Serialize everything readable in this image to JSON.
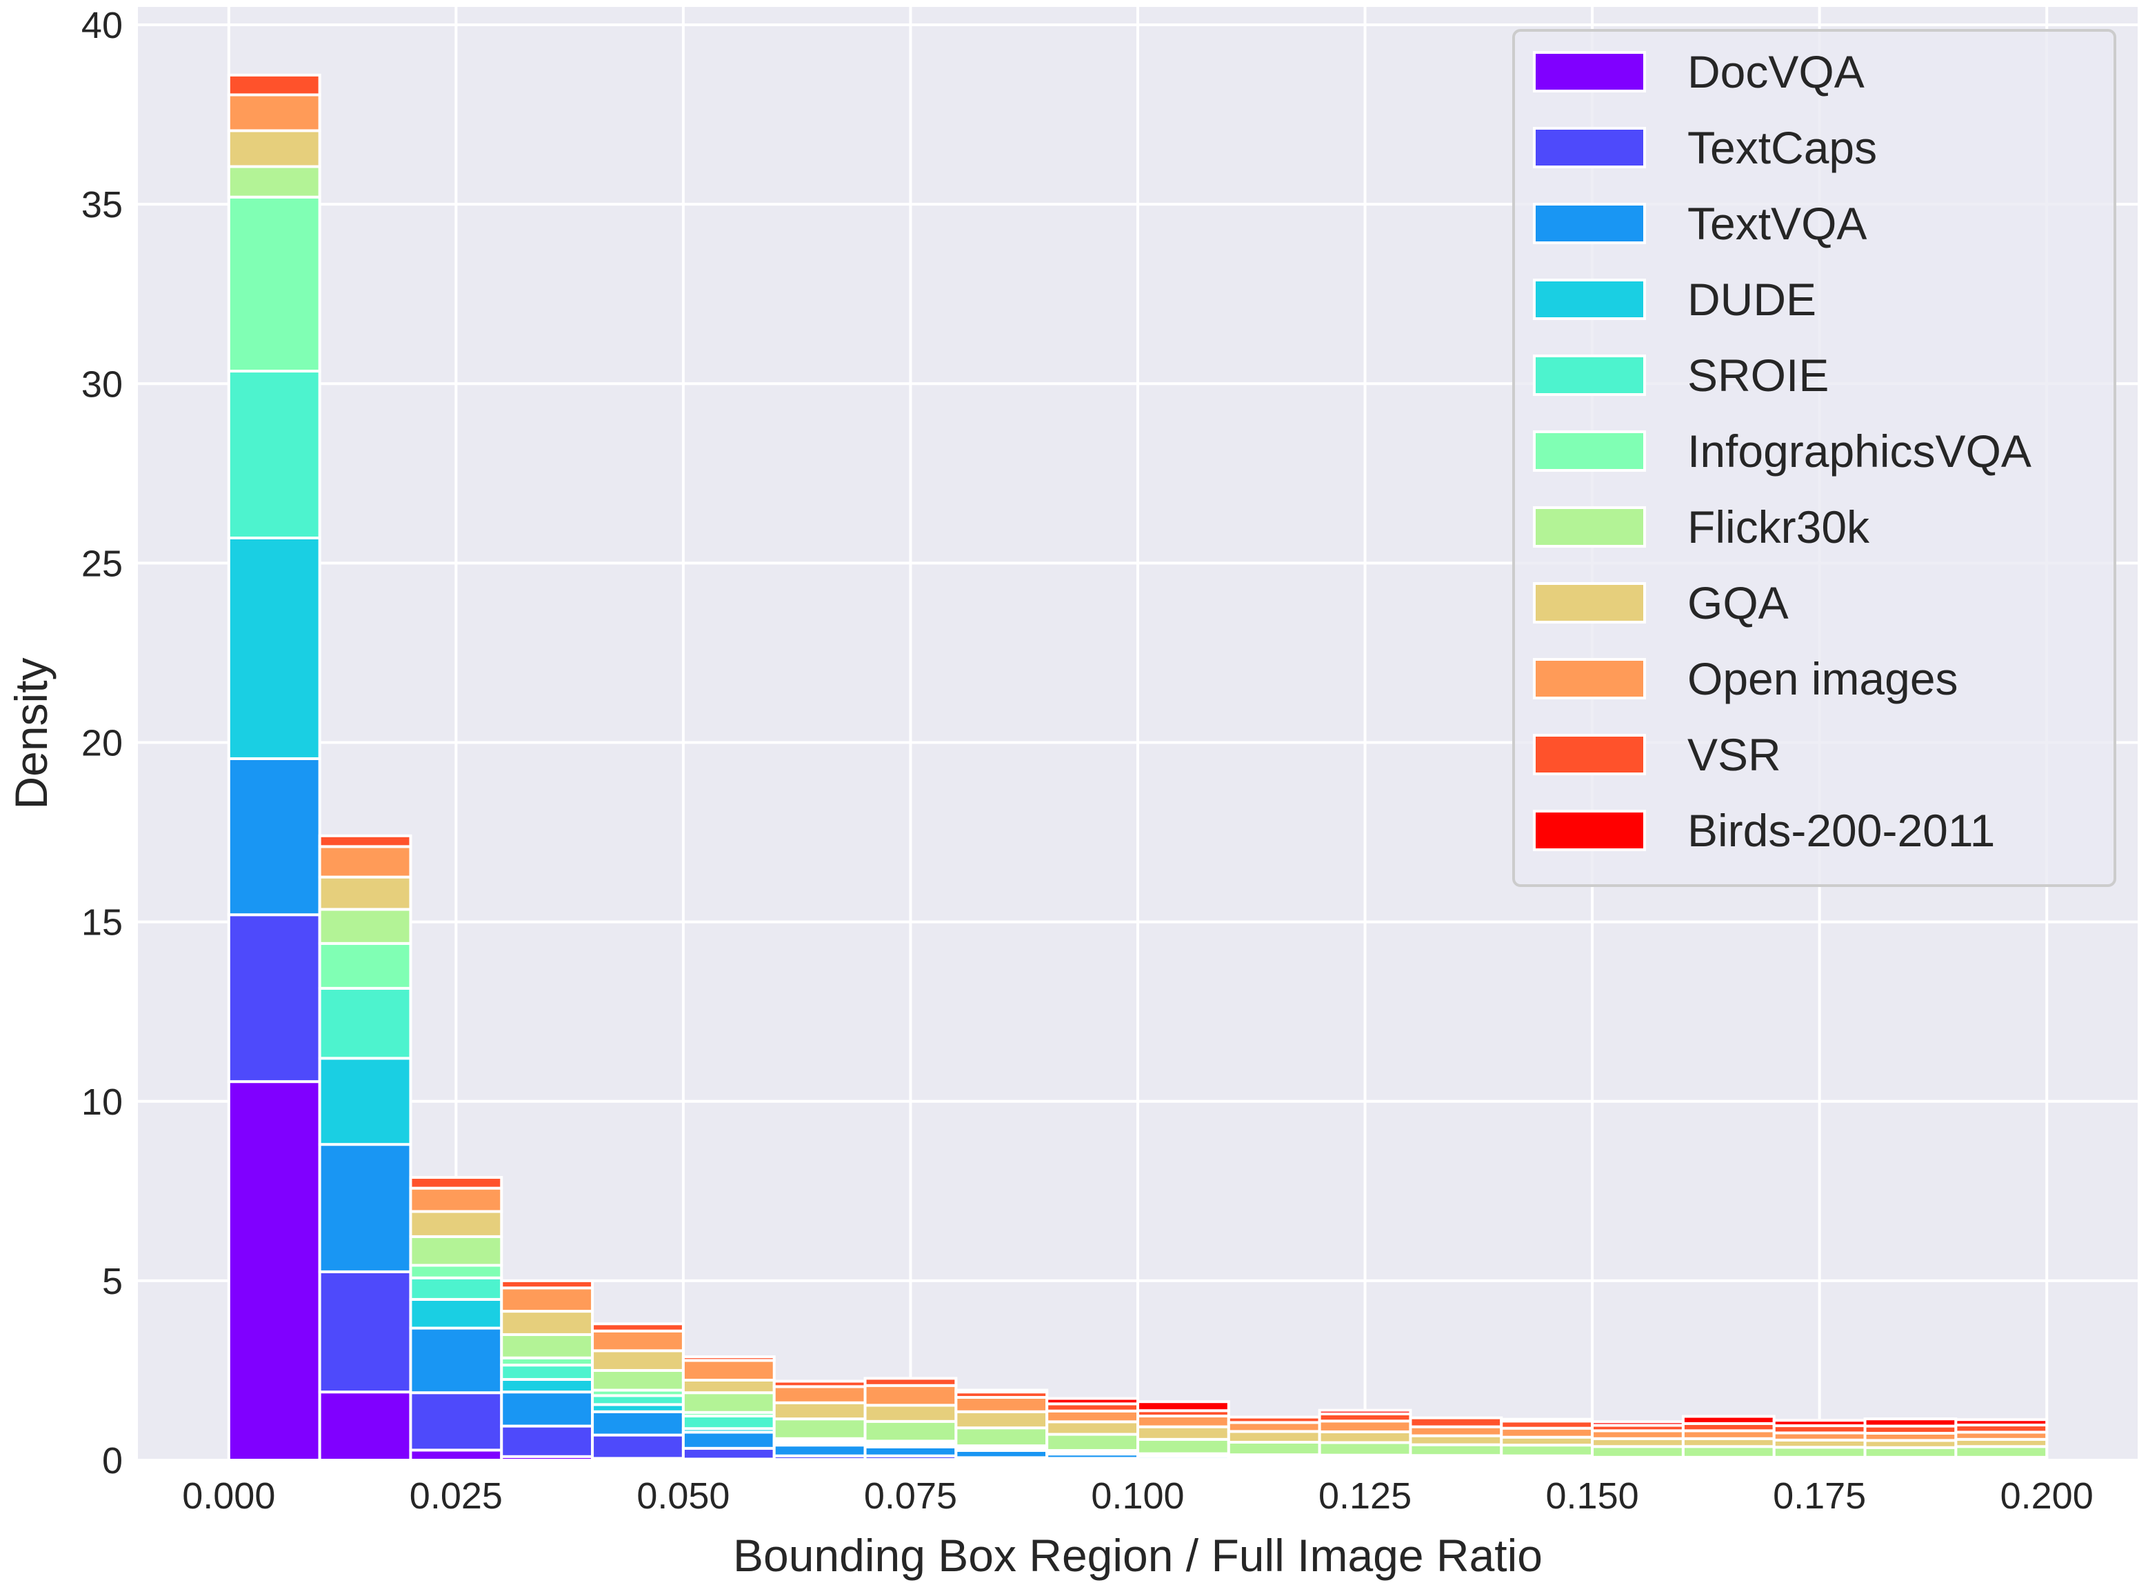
{
  "chart_data": {
    "type": "bar",
    "stacked": true,
    "histogram": true,
    "title": "",
    "xlabel": "Bounding Box Region / Full Image Ratio",
    "ylabel": "Density",
    "xlim": [
      -0.01,
      0.21
    ],
    "ylim": [
      0,
      40.5
    ],
    "x_ticks": [
      0.0,
      0.025,
      0.05,
      0.075,
      0.1,
      0.125,
      0.15,
      0.175,
      0.2
    ],
    "x_tick_labels": [
      "0.000",
      "0.025",
      "0.050",
      "0.075",
      "0.100",
      "0.125",
      "0.150",
      "0.175",
      "0.200"
    ],
    "y_ticks": [
      0,
      5,
      10,
      15,
      20,
      25,
      30,
      35,
      40
    ],
    "y_tick_labels": [
      "0",
      "5",
      "10",
      "15",
      "20",
      "25",
      "30",
      "35",
      "40"
    ],
    "grid": true,
    "legend_position": "top-right",
    "bin_edges": [
      0.0,
      0.01,
      0.02,
      0.03,
      0.04,
      0.05,
      0.06,
      0.07,
      0.08,
      0.09,
      0.1,
      0.11,
      0.12,
      0.13,
      0.14,
      0.15,
      0.16,
      0.17,
      0.18,
      0.19,
      0.2
    ],
    "series": [
      {
        "name": "DocVQA",
        "color": "#8000ff",
        "values": [
          10.55,
          1.9,
          0.28,
          0.1,
          0.05,
          0.03,
          0.02,
          0.02,
          0.02,
          0.02,
          0.01,
          0.01,
          0.01,
          0.01,
          0.01,
          0.01,
          0.01,
          0.01,
          0.01,
          0.01
        ]
      },
      {
        "name": "TextCaps",
        "color": "#4e4afb",
        "values": [
          4.65,
          3.35,
          1.6,
          0.85,
          0.65,
          0.3,
          0.1,
          0.1,
          0.05,
          0.03,
          0.02,
          0.02,
          0.02,
          0.02,
          0.02,
          0.01,
          0.01,
          0.01,
          0.01,
          0.01
        ]
      },
      {
        "name": "TextVQA",
        "color": "#1996f3",
        "values": [
          4.35,
          3.55,
          1.8,
          0.95,
          0.65,
          0.45,
          0.3,
          0.25,
          0.2,
          0.12,
          0.08,
          0.05,
          0.04,
          0.03,
          0.03,
          0.02,
          0.02,
          0.02,
          0.02,
          0.02
        ]
      },
      {
        "name": "DUDE",
        "color": "#1acfe3",
        "values": [
          6.15,
          2.4,
          0.8,
          0.35,
          0.2,
          0.1,
          0.06,
          0.05,
          0.04,
          0.03,
          0.02,
          0.02,
          0.02,
          0.02,
          0.02,
          0.01,
          0.01,
          0.01,
          0.01,
          0.01
        ]
      },
      {
        "name": "SROIE",
        "color": "#4df3ce",
        "values": [
          4.65,
          1.95,
          0.6,
          0.4,
          0.25,
          0.35,
          0.05,
          0.05,
          0.04,
          0.03,
          0.02,
          0.02,
          0.02,
          0.02,
          0.02,
          0.01,
          0.01,
          0.01,
          0.01,
          0.01
        ]
      },
      {
        "name": "InfographicsVQA",
        "color": "#80ffb4",
        "values": [
          4.85,
          1.25,
          0.35,
          0.2,
          0.15,
          0.1,
          0.07,
          0.06,
          0.05,
          0.04,
          0.03,
          0.03,
          0.03,
          0.03,
          0.02,
          0.02,
          0.02,
          0.02,
          0.02,
          0.02
        ]
      },
      {
        "name": "Flickr30k",
        "color": "#b3f396",
        "values": [
          0.85,
          0.95,
          0.8,
          0.65,
          0.55,
          0.55,
          0.55,
          0.55,
          0.5,
          0.45,
          0.4,
          0.35,
          0.35,
          0.3,
          0.3,
          0.3,
          0.3,
          0.28,
          0.27,
          0.3
        ]
      },
      {
        "name": "GQA",
        "color": "#e6cf7c",
        "values": [
          1.0,
          0.9,
          0.7,
          0.65,
          0.55,
          0.35,
          0.45,
          0.45,
          0.45,
          0.35,
          0.35,
          0.3,
          0.3,
          0.25,
          0.22,
          0.22,
          0.22,
          0.2,
          0.2,
          0.2
        ]
      },
      {
        "name": "Open images",
        "color": "#ff9b58",
        "values": [
          1.0,
          0.85,
          0.65,
          0.65,
          0.55,
          0.55,
          0.45,
          0.55,
          0.4,
          0.3,
          0.3,
          0.25,
          0.3,
          0.25,
          0.25,
          0.22,
          0.22,
          0.2,
          0.2,
          0.2
        ]
      },
      {
        "name": "VSR",
        "color": "#ff522b",
        "values": [
          0.55,
          0.3,
          0.3,
          0.2,
          0.2,
          0.1,
          0.15,
          0.2,
          0.15,
          0.2,
          0.15,
          0.15,
          0.2,
          0.25,
          0.2,
          0.15,
          0.2,
          0.2,
          0.2,
          0.2
        ]
      },
      {
        "name": "Birds-200-2011",
        "color": "#ff0000",
        "values": [
          0.0,
          0.0,
          0.0,
          0.0,
          0.0,
          0.0,
          0.0,
          0.0,
          0.05,
          0.15,
          0.25,
          0.0,
          0.1,
          0.0,
          0.05,
          0.1,
          0.2,
          0.15,
          0.2,
          0.15
        ]
      }
    ]
  }
}
